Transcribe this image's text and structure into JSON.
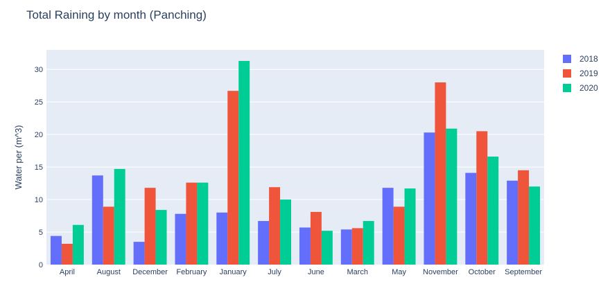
{
  "chart_data": {
    "type": "bar",
    "title": "Total Raining by month (Panching)",
    "xlabel": "",
    "ylabel": "Water per (m^3)",
    "ylim": [
      0,
      33
    ],
    "yticks": [
      0,
      5,
      10,
      15,
      20,
      25,
      30
    ],
    "grid": true,
    "legend_position": "top-right",
    "categories": [
      "April",
      "August",
      "December",
      "February",
      "January",
      "July",
      "June",
      "March",
      "May",
      "November",
      "October",
      "September"
    ],
    "series": [
      {
        "name": "2018",
        "color": "#636efa",
        "values": [
          4.4,
          13.7,
          3.5,
          7.8,
          8.0,
          6.7,
          5.7,
          5.4,
          11.8,
          20.3,
          14.1,
          12.9
        ]
      },
      {
        "name": "2019",
        "color": "#ef553b",
        "values": [
          3.2,
          8.9,
          11.8,
          12.6,
          26.7,
          11.9,
          8.1,
          5.6,
          8.9,
          28.0,
          20.5,
          14.5
        ]
      },
      {
        "name": "2020",
        "color": "#00cc96",
        "values": [
          6.1,
          14.7,
          8.4,
          12.6,
          31.3,
          10.0,
          5.2,
          6.7,
          11.7,
          20.9,
          16.6,
          12.0
        ]
      }
    ]
  }
}
